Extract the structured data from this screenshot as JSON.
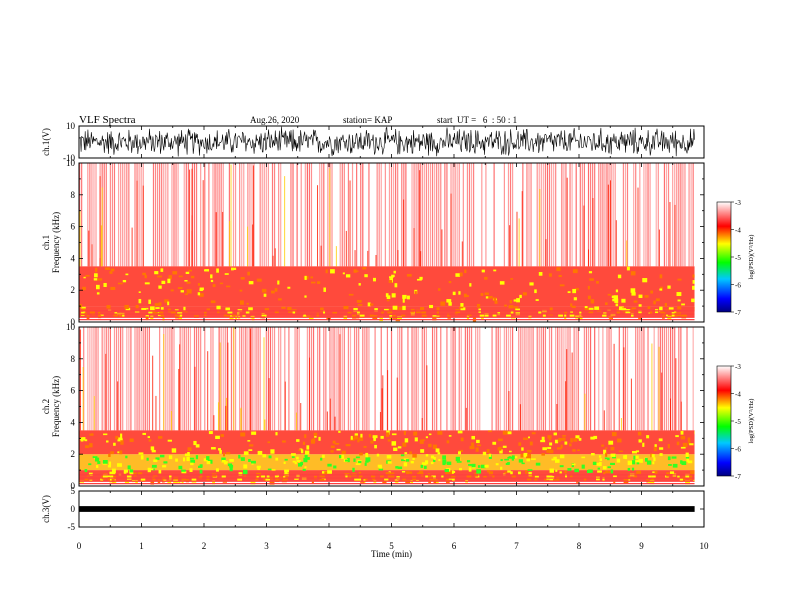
{
  "header": {
    "title": "VLF Spectra",
    "date": "Aug.26, 2020",
    "station": "station= KAP",
    "start": "start  UT =   6  : 50 : 1"
  },
  "chart_data": {
    "type": "heatmap",
    "x_axis": {
      "label": "Time (min)",
      "lim": [
        0,
        10
      ],
      "ticks": [
        0,
        1,
        2,
        3,
        4,
        5,
        6,
        7,
        8,
        9,
        10
      ],
      "data_end": 9.85
    },
    "panels": [
      {
        "id": "ch1-waveform",
        "ylabel": "ch.1(V)",
        "ylim": [
          -10,
          10
        ],
        "ticks": [
          "10",
          "-10"
        ]
      },
      {
        "id": "ch1-spectrogram",
        "ylabel_top": "ch.1",
        "ylabel": "Frequency (kHz)",
        "ylim": [
          0,
          10
        ],
        "ticks": [
          0,
          2,
          4,
          6,
          8,
          10
        ],
        "bands": [
          {
            "range": [
              0.3,
              1.0
            ],
            "level": "red-orange"
          },
          {
            "range": [
              1.0,
              3.5
            ],
            "level": "red-yellow"
          },
          {
            "range": [
              3.5,
              10
            ],
            "level": "sparse-red"
          }
        ],
        "colorbar": {
          "label": "log(PSD)(V²/Hz)",
          "range": [
            -7,
            -3
          ],
          "ticks": [
            "-3",
            "-4",
            "-5",
            "-6",
            "-7"
          ]
        }
      },
      {
        "id": "ch2-spectrogram",
        "ylabel_top": "ch.2",
        "ylabel": "Frequency (kHz)",
        "ylim": [
          0,
          10
        ],
        "ticks": [
          0,
          2,
          4,
          6,
          8,
          10
        ],
        "bands": [
          {
            "range": [
              0.3,
              1.0
            ],
            "level": "red-orange"
          },
          {
            "range": [
              1.0,
              2.0
            ],
            "level": "green-yellow"
          },
          {
            "range": [
              2.0,
              3.5
            ],
            "level": "red-yellow"
          },
          {
            "range": [
              3.5,
              10
            ],
            "level": "sparse-red"
          }
        ],
        "colorbar": {
          "label": "log(PSD)(V²/Hz)",
          "range": [
            -7,
            -3
          ],
          "ticks": [
            "-3",
            "-4",
            "-5",
            "-6",
            "-7"
          ]
        }
      },
      {
        "id": "ch3-waveform",
        "ylabel": "ch.3(V)",
        "ylim": [
          -5,
          5
        ],
        "ticks": [
          "5",
          "0",
          "-5"
        ],
        "trace_level": 0
      }
    ]
  },
  "colors": {
    "red": "#ff0000",
    "yellow": "#ffff00",
    "green": "#00ff00",
    "black": "#000000"
  }
}
